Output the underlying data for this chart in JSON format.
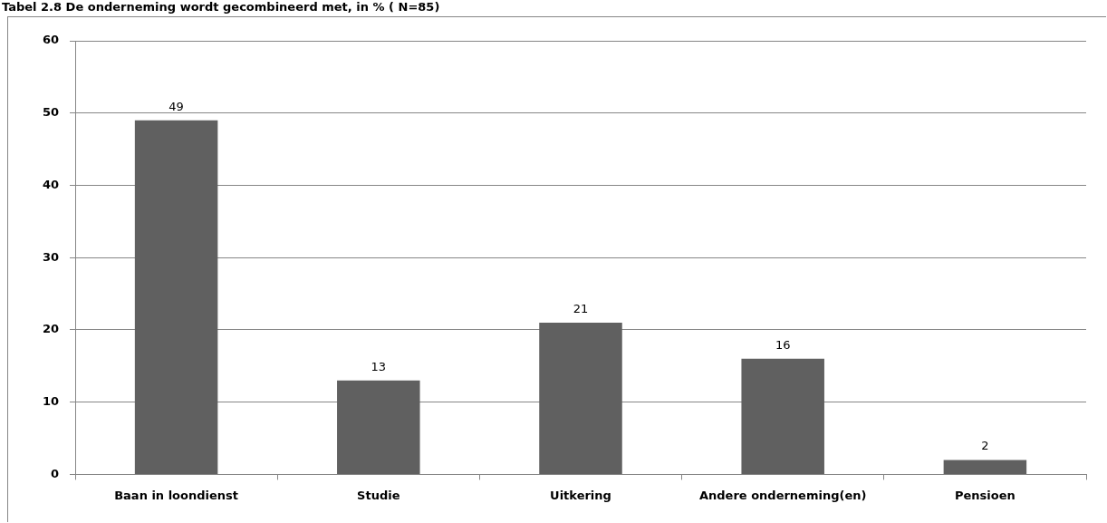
{
  "chart_data": {
    "type": "bar",
    "title": "Tabel 2.8 De onderneming wordt gecombineerd met, in % ( N=85)",
    "categories": [
      "Baan in loondienst",
      "Studie",
      "Uitkering",
      "Andere onderneming(en)",
      "Pensioen"
    ],
    "values": [
      49,
      13,
      21,
      16,
      2
    ],
    "color": "#606060",
    "ylim": [
      0,
      60
    ],
    "yticks": [
      0,
      10,
      20,
      30,
      40,
      50,
      60
    ],
    "grid": "y",
    "data_labels": true
  }
}
